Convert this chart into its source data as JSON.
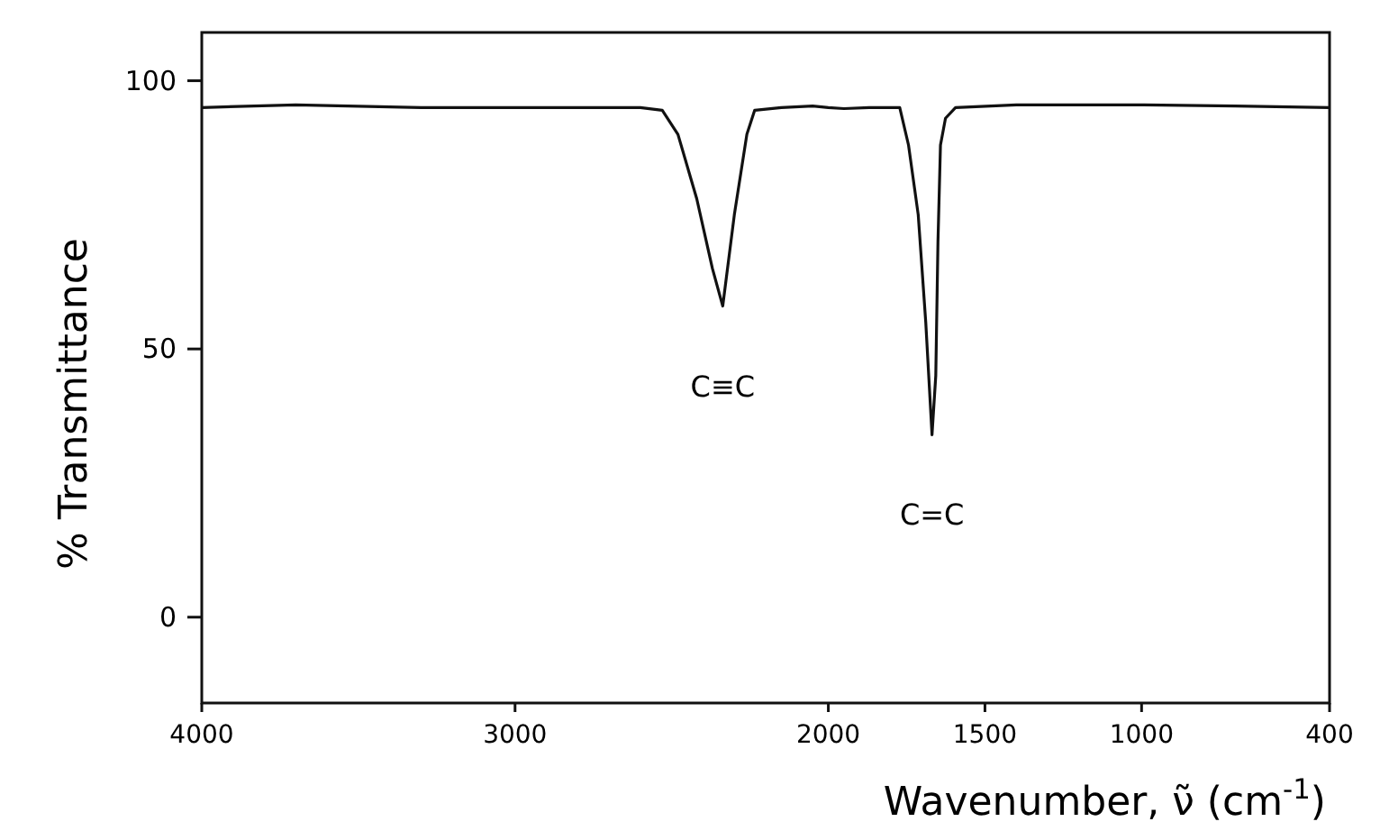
{
  "chart_data": {
    "type": "line",
    "xlabel": "Wavenumber, ν̃ (cm$^{-1}$)",
    "ylabel": "% Transmittance",
    "x": [
      4000,
      3700,
      3300,
      2900,
      2600,
      2530,
      2480,
      2420,
      2370,
      2337,
      2300,
      2260,
      2235,
      2150,
      2050,
      2000,
      1950,
      1870,
      1772,
      1744,
      1713,
      1689,
      1669,
      1657,
      1650,
      1642,
      1626,
      1594,
      1400,
      1000,
      700,
      400
    ],
    "series": [
      {
        "color": "#111111",
        "values": [
          95,
          95.5,
          95,
          95,
          95,
          94.5,
          90,
          78,
          65,
          58,
          75,
          90,
          94.5,
          95,
          95.3,
          95,
          94.8,
          95,
          95,
          88,
          75,
          55,
          34,
          45,
          70,
          88,
          93,
          95,
          95.5,
          95.5,
          95.3,
          95
        ]
      }
    ],
    "xlim": [
      4000,
      400
    ],
    "xticks": [
      4000,
      3000,
      2000,
      1500,
      1000,
      400
    ],
    "ylim": [
      -16,
      109
    ],
    "yticks": [
      0,
      50,
      100
    ],
    "annotations": [
      "C≡C",
      "C=C"
    ],
    "grid": false,
    "marker": "none",
    "line_style": "solid"
  }
}
